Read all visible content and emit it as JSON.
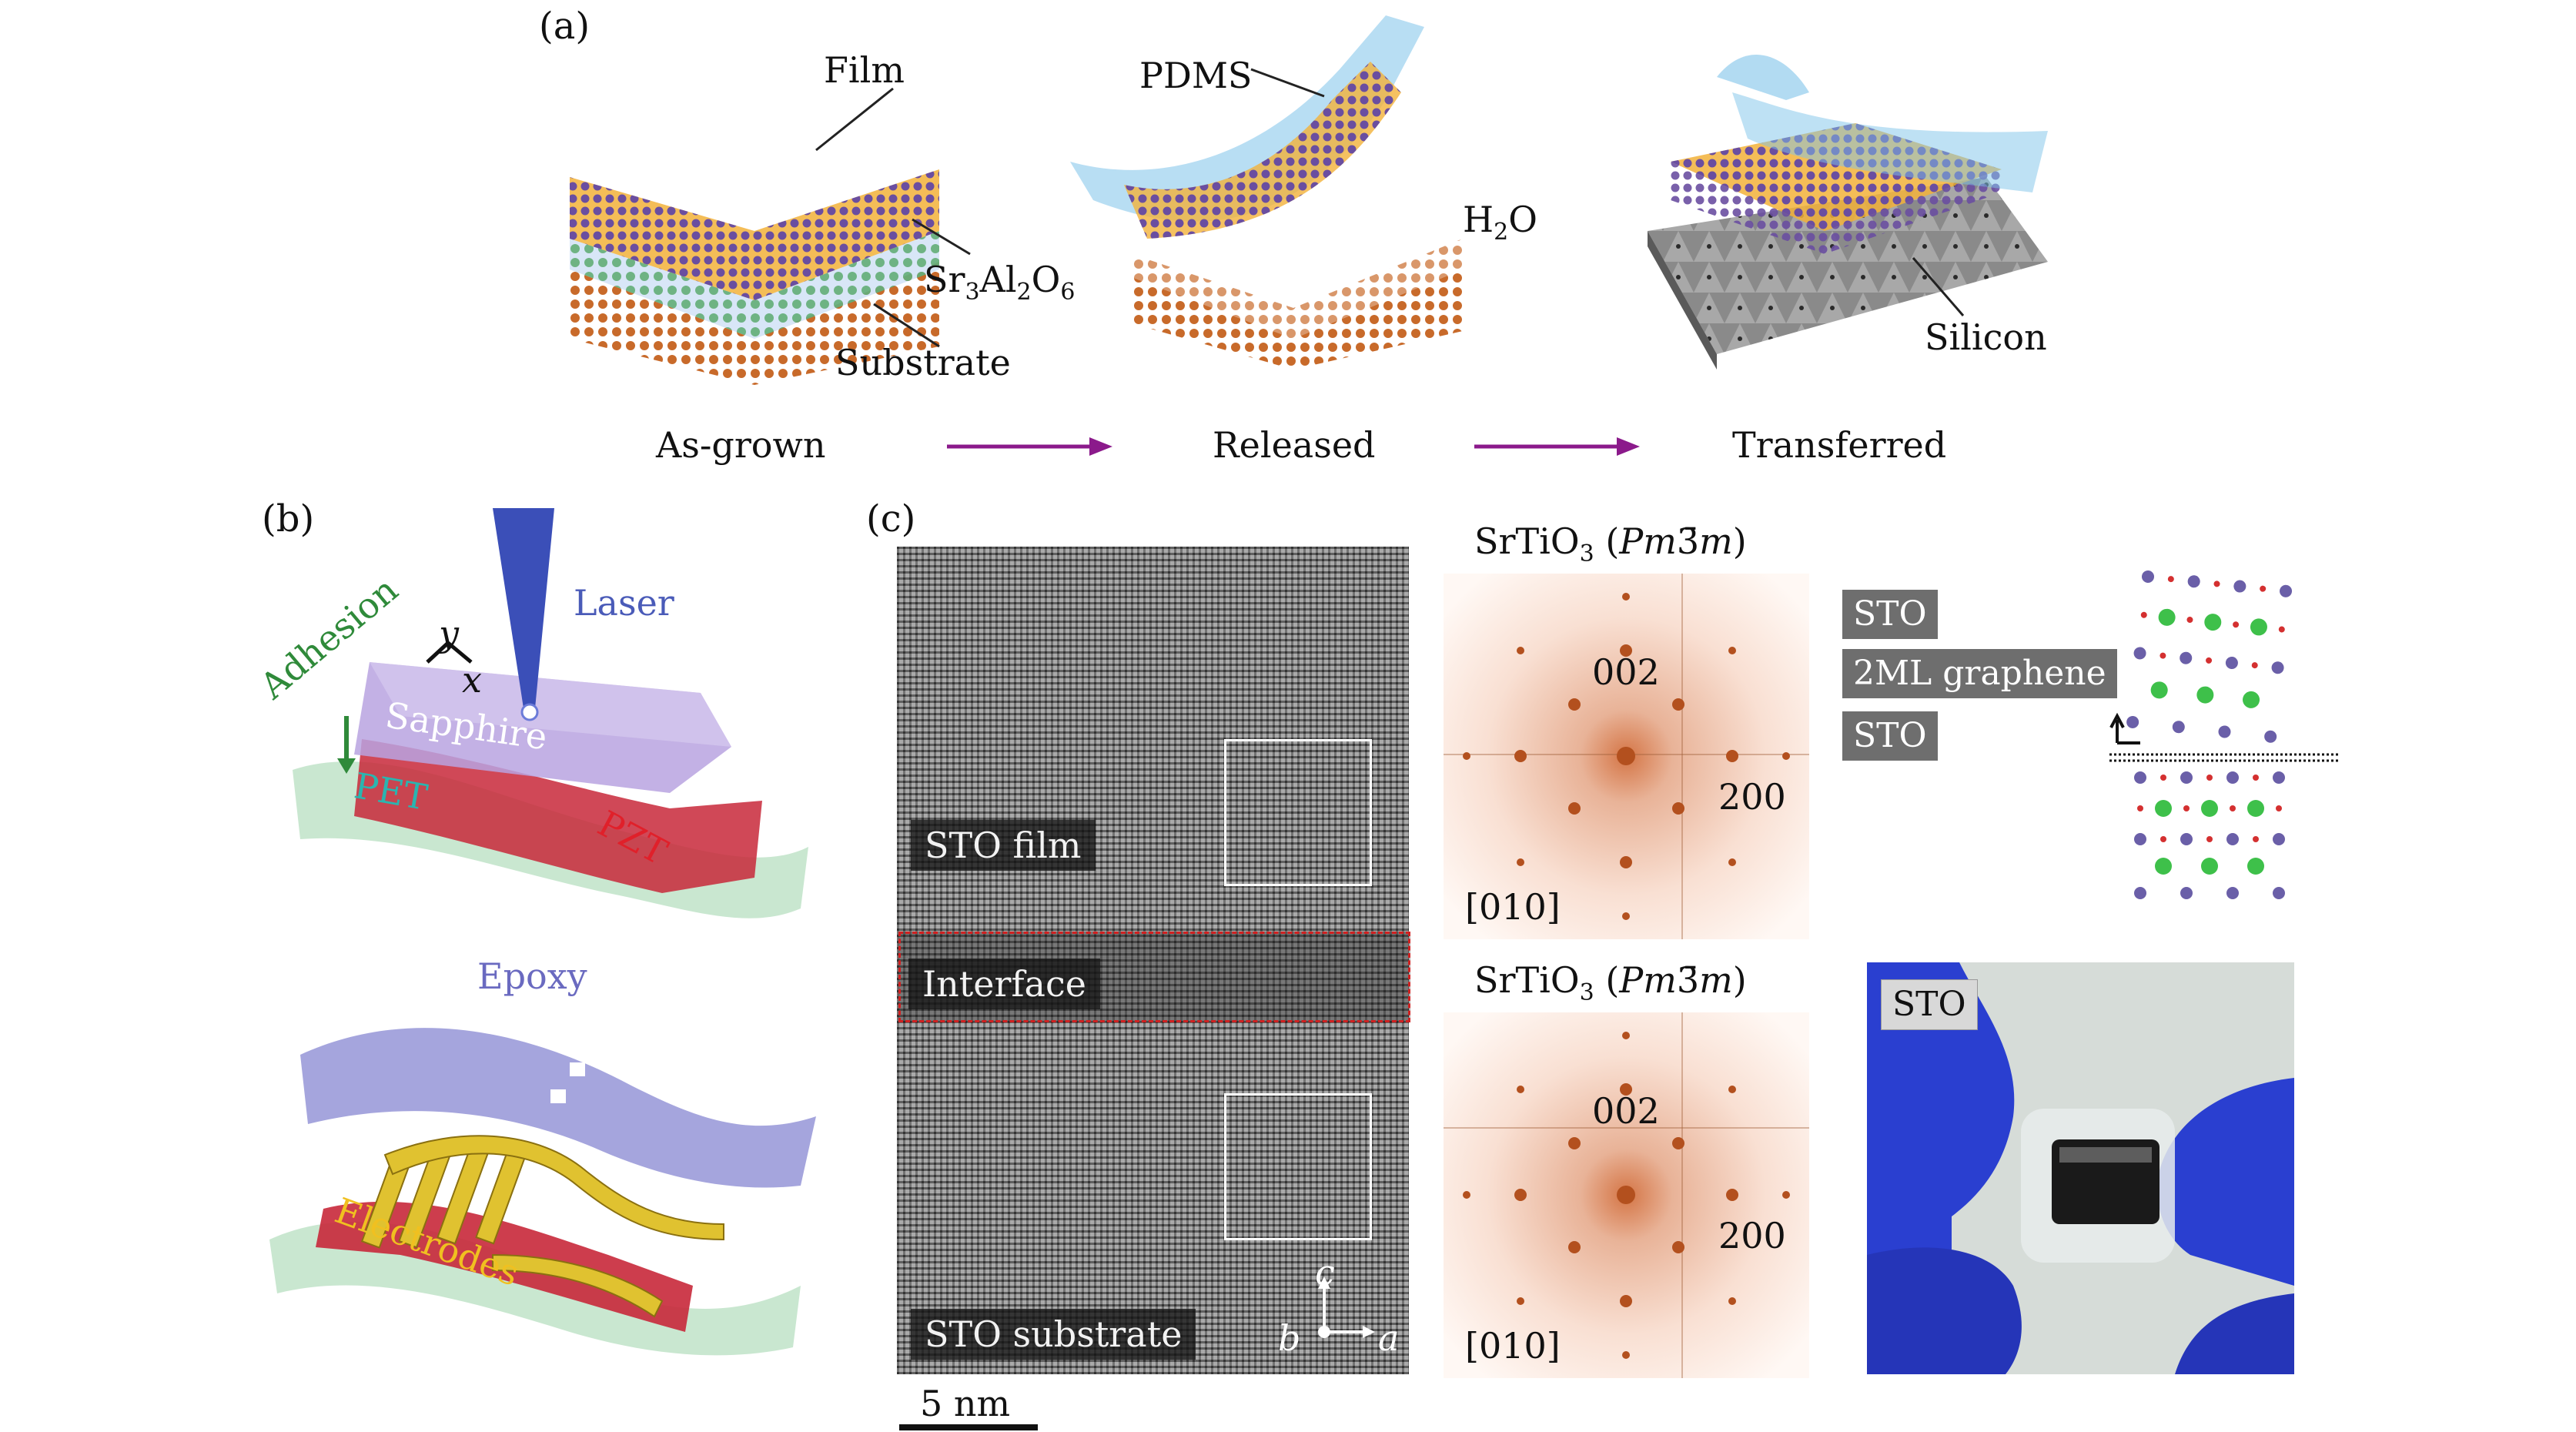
{
  "panels": {
    "a": "(a)",
    "b": "(b)",
    "c": "(c)"
  },
  "panel_a": {
    "film": "Film",
    "sacrificial": "Sr3Al2O6",
    "substrate": "Substrate",
    "pdms": "PDMS",
    "water": "H2O",
    "silicon": "Silicon",
    "steps": [
      "As-grown",
      "Released",
      "Transferred"
    ],
    "arrow_color": "#8b1a8b"
  },
  "panel_b": {
    "laser": "Laser",
    "adhesion": "Adhesion",
    "sapphire": "Sapphire",
    "pet": "PET",
    "pzt": "PZT",
    "axis_y": "y",
    "axis_x": "x",
    "epoxy": "Epoxy",
    "electrodes": "Electrodes"
  },
  "panel_c": {
    "sto_film": "STO film",
    "interface": "Interface",
    "sto_substrate": "STO substrate",
    "scale_bar": "5 nm",
    "axes": {
      "c": "c",
      "b": "b",
      "a": "a"
    },
    "fft_top": {
      "title": "SrTiO3 (Pm3̄m)",
      "spot1": "002",
      "spot2": "200",
      "zone": "[010]"
    },
    "fft_bottom": {
      "title": "SrTiO3 (Pm3̄m)",
      "spot1": "002",
      "spot2": "200",
      "zone": "[010]"
    },
    "stack": [
      "STO",
      "2ML graphene",
      "STO"
    ],
    "photo_label": "STO"
  }
}
